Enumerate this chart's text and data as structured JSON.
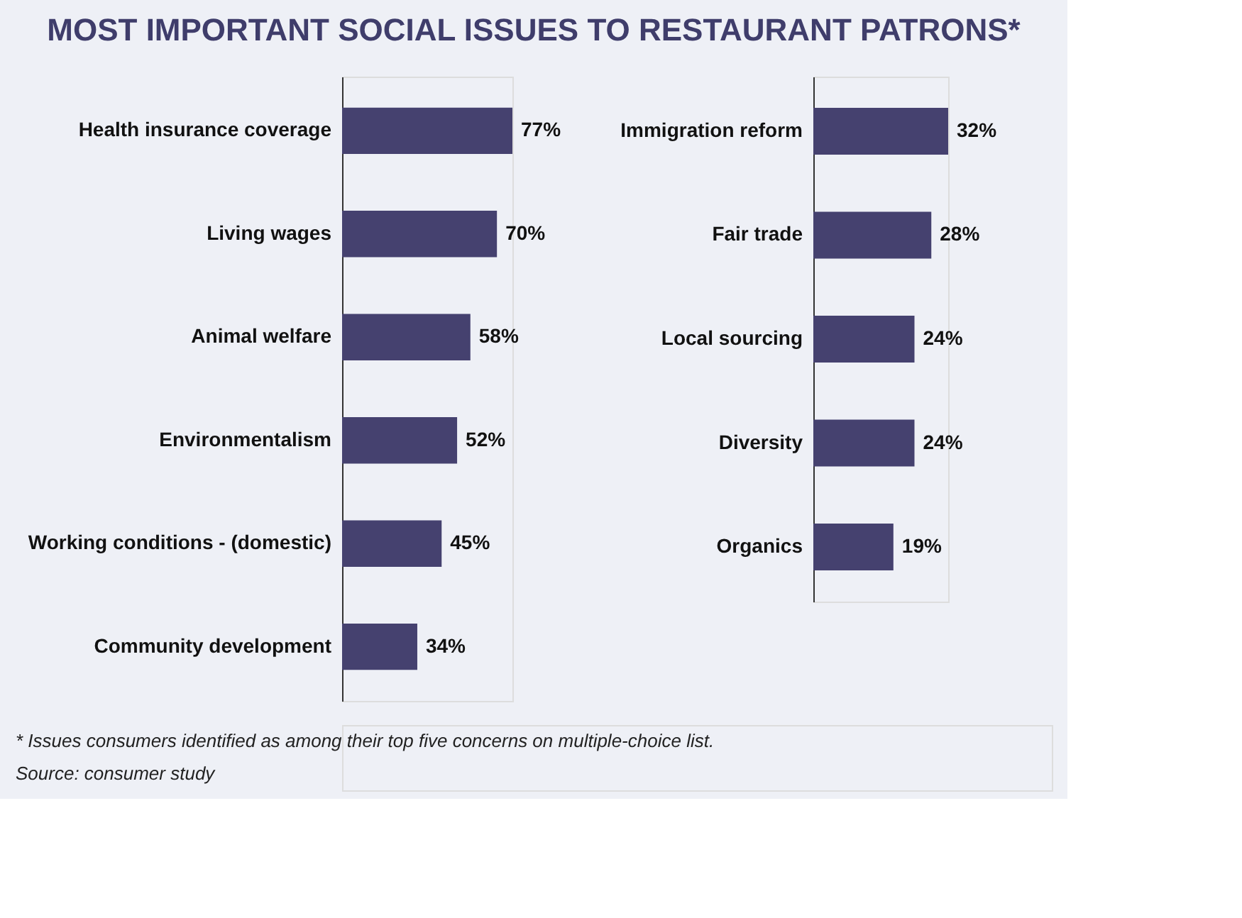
{
  "chart_data": [
    {
      "type": "bar",
      "orientation": "horizontal",
      "title": "MOST  IMPORTANT SOCIAL ISSUES TO RESTAURANT PATRONS*",
      "categories": [
        "Health insurance coverage",
        "Living wages",
        "Animal welfare",
        "Environmentalism",
        "Working conditions - (domestic)",
        "Community development"
      ],
      "values": [
        77,
        70,
        58,
        52,
        45,
        34
      ],
      "value_labels": [
        "77%",
        "70%",
        "58%",
        "52%",
        "45%",
        "34%"
      ],
      "color": "#45416f",
      "tick_labels": "y",
      "annotations": [
        "* Issues consumers identified as among their top five concerns on multiple-choice list.",
        "Source: consumer study"
      ]
    },
    {
      "type": "bar",
      "orientation": "horizontal",
      "categories": [
        "Immigration reform",
        "Fair trade",
        "Local sourcing",
        "Diversity",
        "Organics"
      ],
      "values": [
        32,
        28,
        24,
        24,
        19
      ],
      "value_labels": [
        "32%",
        "28%",
        "24%",
        "24%",
        "19%"
      ],
      "color": "#45416f",
      "tick_labels": "y"
    }
  ]
}
